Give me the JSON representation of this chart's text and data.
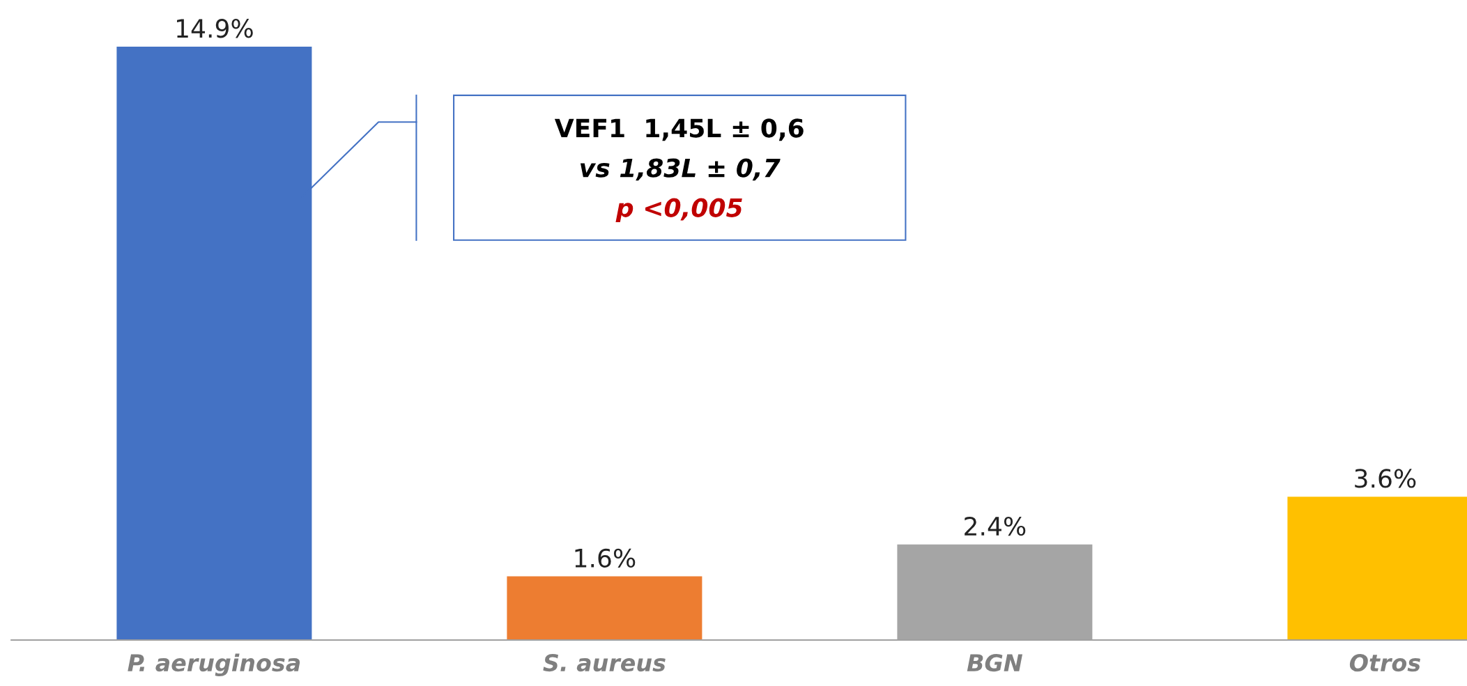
{
  "chart_data": {
    "type": "bar",
    "categories": [
      "P. aeruginosa",
      "S. aureus",
      "BGN",
      "Otros"
    ],
    "values": [
      14.9,
      1.6,
      2.4,
      3.6
    ],
    "colors": [
      "#4472c4",
      "#ed7d31",
      "#a5a5a5",
      "#ffc000"
    ],
    "value_labels": [
      "14.9%",
      "1.6%",
      "2.4%",
      "3.6%"
    ],
    "annotations": [
      "VEF1  1,45L ± 0,6",
      "vs 1,83L ± 0,7",
      "p <0,005"
    ],
    "grid": false,
    "legend": false
  }
}
